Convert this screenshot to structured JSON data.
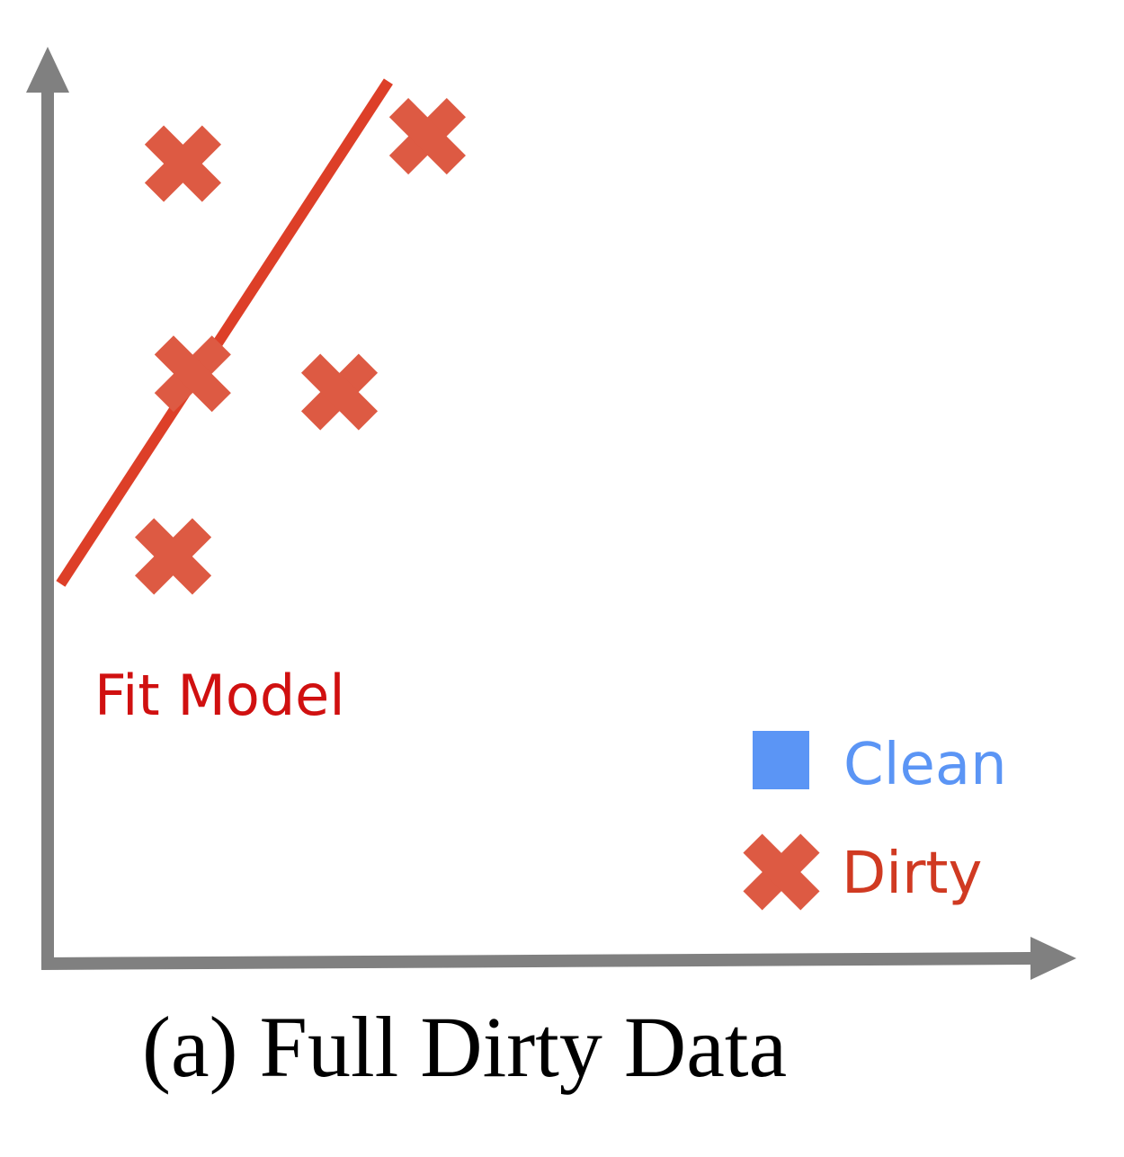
{
  "chart_data": {
    "type": "scatter",
    "caption": "(a) Full Dirty Data",
    "xlim": [
      0,
      10
    ],
    "ylim": [
      0,
      10
    ],
    "grid": false,
    "ticks": false,
    "series": [
      {
        "name": "Dirty",
        "marker": "x",
        "color": "#dd5a43",
        "points": [
          {
            "x": 1.3,
            "y": 8.7
          },
          {
            "x": 3.8,
            "y": 9.0
          },
          {
            "x": 1.4,
            "y": 6.4
          },
          {
            "x": 2.9,
            "y": 6.2
          },
          {
            "x": 1.2,
            "y": 4.4
          }
        ]
      },
      {
        "name": "Clean",
        "marker": "square",
        "color": "#5b95f5",
        "points": []
      }
    ],
    "fit_line": {
      "label": "Fit Model",
      "color": "#dd3f28",
      "label_color": "#d01010",
      "x": [
        0.05,
        3.4
      ],
      "y": [
        4.1,
        9.6
      ]
    },
    "legend": {
      "placement": "bottom-right",
      "entries": [
        {
          "label": "Clean",
          "marker": "square",
          "color": "#5b95f5"
        },
        {
          "label": "Dirty",
          "marker": "x",
          "color": "#dd5a43",
          "text_color": "#d03a22"
        }
      ]
    },
    "axis_color": "#808080"
  }
}
